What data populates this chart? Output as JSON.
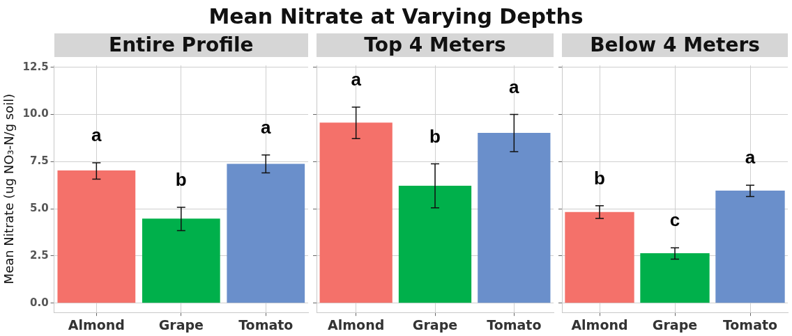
{
  "chart_data": [
    {
      "type": "bar",
      "title": "Mean Nitrate at Varying Depths",
      "subtitle": "Entire Profile",
      "ylabel": "Mean Nitrate (ug NO₃-N/g soil)",
      "categories": [
        "Almond",
        "Grape",
        "Tomato"
      ],
      "values": [
        7.03,
        4.48,
        7.38
      ],
      "colors": [
        "#f4716a",
        "#00b04b",
        "#6a8fcb"
      ],
      "errors": [
        [
          6.57,
          7.44
        ],
        [
          3.84,
          5.08
        ],
        [
          6.9,
          7.85
        ]
      ],
      "ylim": [
        -0.5,
        12.6
      ],
      "yticks": [
        {
          "value": 0,
          "label": "0.0"
        },
        {
          "value": 2.5,
          "label": "2.5"
        },
        {
          "value": 5,
          "label": "5.0"
        },
        {
          "value": 7.5,
          "label": "7.5"
        },
        {
          "value": 10,
          "label": "10.0"
        },
        {
          "value": 12.5,
          "label": "12.5"
        }
      ],
      "grid": true,
      "legend": false,
      "annotations": [
        "a",
        "b",
        "a"
      ]
    },
    {
      "type": "bar",
      "subtitle": "Top 4 Meters",
      "categories": [
        "Almond",
        "Grape",
        "Tomato"
      ],
      "values": [
        9.57,
        6.22,
        9.02
      ],
      "colors": [
        "#f4716a",
        "#00b04b",
        "#6a8fcb"
      ],
      "errors": [
        [
          8.72,
          10.39
        ],
        [
          5.05,
          7.38
        ],
        [
          8.03,
          10.0
        ]
      ],
      "ylim": [
        -0.5,
        12.6
      ],
      "yticks": [
        {
          "value": 0,
          "label": null
        },
        {
          "value": 2.5,
          "label": null
        },
        {
          "value": 5,
          "label": null
        },
        {
          "value": 7.5,
          "label": null
        },
        {
          "value": 10,
          "label": null
        },
        {
          "value": 12.5,
          "label": null
        }
      ],
      "grid": true,
      "legend": false,
      "tick_labels": "x",
      "annotations": [
        "a",
        "b",
        "a"
      ]
    },
    {
      "type": "bar",
      "subtitle": "Below 4 Meters",
      "categories": [
        "Almond",
        "Grape",
        "Tomato"
      ],
      "values": [
        4.83,
        2.64,
        5.96
      ],
      "colors": [
        "#f4716a",
        "#00b04b",
        "#6a8fcb"
      ],
      "errors": [
        [
          4.49,
          5.16
        ],
        [
          2.33,
          2.93
        ],
        [
          5.65,
          6.25
        ]
      ],
      "ylim": [
        -0.5,
        12.6
      ],
      "yticks": [
        {
          "value": 0,
          "label": null
        },
        {
          "value": 2.5,
          "label": null
        },
        {
          "value": 5,
          "label": null
        },
        {
          "value": 7.5,
          "label": null
        },
        {
          "value": 10,
          "label": null
        },
        {
          "value": 12.5,
          "label": null
        }
      ],
      "grid": true,
      "legend": false,
      "tick_labels": "x",
      "annotations": [
        "b",
        "c",
        "a"
      ]
    }
  ]
}
